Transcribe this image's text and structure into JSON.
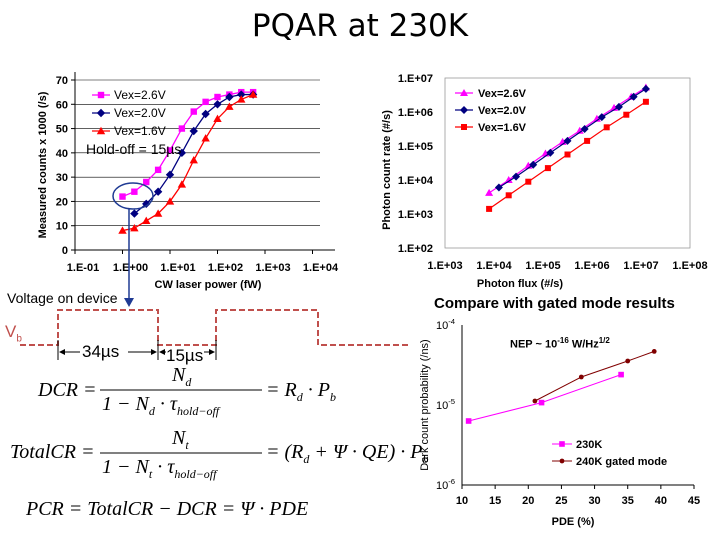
{
  "title": "PQAR at 230K",
  "chart_data": [
    {
      "type": "line",
      "name": "pqar-curves",
      "ylabel": "Measured counts x 1000 (/s)",
      "xlabel": "CW laser power (fW)",
      "x_ticks": [
        "1.E-01",
        "1.E+00",
        "1.E+01",
        "1.E+02",
        "1.E+03",
        "1.E+04"
      ],
      "y_ticks": [
        "0",
        "10",
        "20",
        "30",
        "40",
        "50",
        "60",
        "70"
      ],
      "xlim_log10": [
        -1,
        4
      ],
      "ylim": [
        0,
        70
      ],
      "annotation": "Hold-off = 15µs",
      "series": [
        {
          "name": "Vex=2.6V",
          "color": "#ff00ff",
          "marker": "square",
          "x": [
            0.0,
            0.25,
            0.5,
            0.75,
            1.0,
            1.25,
            1.5,
            1.75,
            2.0,
            2.25,
            2.5,
            2.75
          ],
          "y": [
            22,
            24,
            28,
            33,
            41,
            50,
            57,
            61,
            63,
            64,
            65,
            65
          ]
        },
        {
          "name": "Vex=2.0V",
          "color": "#000080",
          "marker": "diamond",
          "x": [
            0.25,
            0.5,
            0.75,
            1.0,
            1.25,
            1.5,
            1.75,
            2.0,
            2.25,
            2.5,
            2.75
          ],
          "y": [
            15,
            19,
            24,
            31,
            40,
            49,
            56,
            60,
            63,
            64,
            64
          ]
        },
        {
          "name": "Vex=1.6V",
          "color": "#ff0000",
          "marker": "triangle",
          "x": [
            0.0,
            0.25,
            0.5,
            0.75,
            1.0,
            1.25,
            1.5,
            1.75,
            2.0,
            2.25,
            2.5,
            2.75
          ],
          "y": [
            8,
            9,
            12,
            15,
            20,
            27,
            37,
            46,
            54,
            59,
            62,
            64
          ]
        }
      ]
    },
    {
      "type": "line",
      "name": "photon-count-rate",
      "ylabel": "Photon count rate (#/s)",
      "xlabel": "Photon flux (#/s)",
      "x_ticks": [
        "1.E+03",
        "1.E+04",
        "1.E+05",
        "1.E+06",
        "1.E+07",
        "1.E+08"
      ],
      "y_ticks": [
        "1.E+02",
        "1.E+03",
        "1.E+04",
        "1.E+05",
        "1.E+06",
        "1.E+07"
      ],
      "xlim_log10": [
        3,
        8
      ],
      "ylim_log10": [
        2,
        7
      ],
      "series": [
        {
          "name": "Vex=2.6V",
          "color": "#ff00ff",
          "marker": "triangle",
          "x": [
            3.9,
            4.3,
            4.7,
            5.05,
            5.4,
            5.75,
            6.1,
            6.45,
            6.8,
            7.1
          ],
          "y": [
            3.62,
            4.0,
            4.42,
            4.78,
            5.12,
            5.45,
            5.8,
            6.12,
            6.45,
            6.72
          ]
        },
        {
          "name": "Vex=2.0V",
          "color": "#000080",
          "marker": "diamond",
          "x": [
            4.1,
            4.45,
            4.8,
            5.15,
            5.5,
            5.85,
            6.2,
            6.55,
            6.85,
            7.1
          ],
          "y": [
            3.78,
            4.1,
            4.45,
            4.8,
            5.15,
            5.5,
            5.85,
            6.15,
            6.45,
            6.68
          ]
        },
        {
          "name": "Vex=1.6V",
          "color": "#ff0000",
          "marker": "square",
          "x": [
            3.9,
            4.3,
            4.7,
            5.1,
            5.5,
            5.9,
            6.3,
            6.7,
            7.1
          ],
          "y": [
            3.15,
            3.55,
            3.95,
            4.35,
            4.75,
            5.15,
            5.55,
            5.92,
            6.3
          ]
        }
      ]
    },
    {
      "type": "line",
      "name": "dark-count-comparison",
      "title": "Compare with gated mode results",
      "annotation": "NEP ~ 10-16 W/Hz1/2",
      "ylabel": "Dark count probability (/ns)",
      "xlabel": "PDE (%)",
      "x_ticks": [
        "10",
        "15",
        "20",
        "25",
        "30",
        "35",
        "40",
        "45"
      ],
      "y_ticks": [
        "10-4",
        "10-5",
        "10-6"
      ],
      "xlim": [
        10,
        45
      ],
      "ylim_log10": [
        -6,
        -4
      ],
      "series": [
        {
          "name": "230K",
          "color": "#ff00ff",
          "marker": "square",
          "x": [
            11,
            22,
            34
          ],
          "y": [
            -5.2,
            -4.97,
            -4.62
          ]
        },
        {
          "name": "240K gated mode",
          "color": "#800000",
          "marker": "circle",
          "x": [
            21,
            28,
            35,
            39
          ],
          "y": [
            -4.95,
            -4.65,
            -4.45,
            -4.33
          ]
        }
      ]
    }
  ],
  "pulse": {
    "caption": "Voltage on device",
    "vb_label": "V",
    "vb_sub": "b",
    "on_label": "34µs",
    "off_label": "15µs"
  },
  "equations": {
    "dcr": {
      "lhs": "DCR =",
      "num": "N",
      "num_sub": "d",
      "den_a": "1 − N",
      "den_a_sub": "d",
      "den_b": " · τ",
      "den_b_sub": "hold−off",
      "rhs": "= R",
      "rhs_sub": "d",
      "rhs_tail": " · P",
      "rhs_tail_sub": "b"
    },
    "total": {
      "lhs": "TotalCR =",
      "num": "N",
      "num_sub": "t",
      "den_a": "1 − N",
      "den_a_sub": "t",
      "den_b": " · τ",
      "den_b_sub": "hold−off",
      "rhs": "= (R",
      "rhs_sub": "d",
      "rhs_tail": " + Ψ · QE) · P",
      "rhs_tail_sub": "b"
    },
    "pcr": "PCR = TotalCR − DCR = Ψ · PDE"
  },
  "colors": {
    "axis": "#000000",
    "grid": "#000000",
    "pulse": "#c0504d",
    "highlight": "#1f3a93",
    "bg": "#ffffff"
  }
}
